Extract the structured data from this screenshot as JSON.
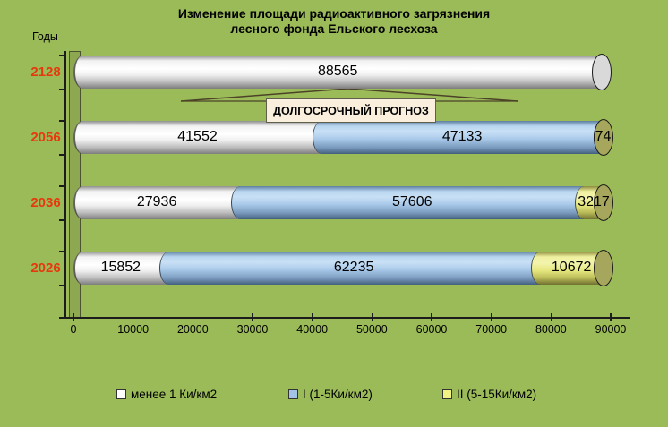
{
  "title": {
    "line1": "Изменение площади радиоактивного загрязнения",
    "line2": "лесного фонда Ельского лесхоза"
  },
  "axis": {
    "y_label": "Годы",
    "x_ticks": [
      0,
      10000,
      20000,
      30000,
      40000,
      50000,
      60000,
      70000,
      80000,
      90000
    ]
  },
  "callout": {
    "text": "ДОЛГОСРОЧНЫЙ ПРОГНОЗ"
  },
  "chart_data": {
    "type": "bar",
    "orientation": "horizontal",
    "stacked": true,
    "title": "Изменение площади радиоактивного загрязнения лесного фонда Ельского лесхоза",
    "categories": [
      "2128",
      "2056",
      "2036",
      "2026"
    ],
    "series": [
      {
        "name": "менее 1 Ки/км2",
        "color": "#ffffff",
        "cap_color": "#d9d9d9",
        "values": [
          88565,
          41552,
          27936,
          15852
        ]
      },
      {
        "name": "I (1-5Ки/км2)",
        "color": "#a3c4e8",
        "cap_color": "#7d9cbd",
        "values": [
          0,
          47133,
          57606,
          62235
        ]
      },
      {
        "name": "II (5-15Ки/км2)",
        "color": "#f2f283",
        "cap_color": "#a6a75c",
        "values": [
          0,
          74,
          3217,
          10672
        ]
      }
    ],
    "xlim": [
      0,
      90000
    ],
    "grid": false,
    "legend_position": "bottom",
    "category_axis_label": "Годы"
  },
  "colors": {
    "background": "#9bbb59",
    "year_label": "#e8380d",
    "wall": "#8ea751",
    "callout_fill": "#faeedd",
    "text": "#000000"
  }
}
